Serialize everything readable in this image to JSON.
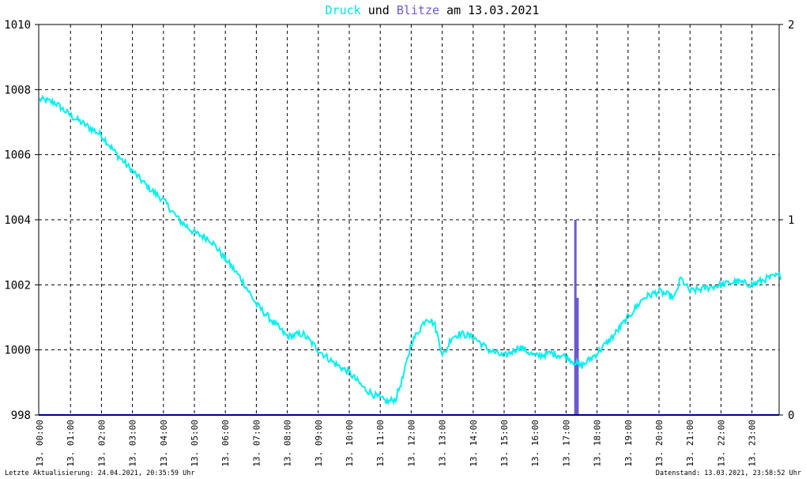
{
  "title": {
    "parts": [
      {
        "text": "Druck",
        "color": "#00e5e5"
      },
      {
        "text": " und ",
        "color": "#000000"
      },
      {
        "text": "Blitze",
        "color": "#6a5acd"
      },
      {
        "text": " am 13.03.2021",
        "color": "#000000"
      }
    ]
  },
  "footer": {
    "left": "Letzte Aktualisierung: 24.04.2021, 20:35:59 Uhr",
    "right": "Datenstand: 13.03.2021, 23:58:52 Uhr"
  },
  "colors": {
    "pressure": "#00f0f0",
    "lightning": "#6a5acd",
    "grid": "#000000",
    "axis": "#000080"
  },
  "chart_data": {
    "type": "line",
    "x_ticks": [
      "13. 00:00",
      "13. 01:00",
      "13. 02:00",
      "13. 03:00",
      "13. 04:00",
      "13. 05:00",
      "13. 06:00",
      "13. 07:00",
      "13. 08:00",
      "13. 09:00",
      "13. 10:00",
      "13. 11:00",
      "13. 12:00",
      "13. 13:00",
      "13. 14:00",
      "13. 15:00",
      "13. 16:00",
      "13. 17:00",
      "13. 18:00",
      "13. 19:00",
      "13. 20:00",
      "13. 21:00",
      "13. 22:00",
      "13. 23:00"
    ],
    "y_left": {
      "min": 998,
      "max": 1010,
      "ticks": [
        "998",
        "1000",
        "1002",
        "1004",
        "1006",
        "1008",
        "1010"
      ]
    },
    "y_right": {
      "min": 0,
      "max": 2,
      "ticks": [
        "0",
        "1",
        "2"
      ]
    },
    "grid": true,
    "series": [
      {
        "name": "Druck",
        "axis": "left",
        "x_hours": [
          0,
          0.5,
          1,
          1.5,
          2,
          2.5,
          3,
          3.5,
          4,
          4.5,
          5,
          5.5,
          6,
          6.5,
          7,
          7.5,
          8,
          8.5,
          9,
          9.5,
          10,
          10.5,
          11,
          11.25,
          11.5,
          11.75,
          12,
          12.5,
          12.75,
          13,
          13.1,
          13.3,
          13.6,
          14,
          14.5,
          15,
          15.5,
          16,
          16.5,
          17,
          17.3,
          17.5,
          18,
          18.5,
          19,
          19.5,
          20,
          20.5,
          20.7,
          21,
          21.5,
          22,
          22.5,
          23,
          23.5,
          23.95
        ],
        "values": [
          1007.7,
          1007.6,
          1007.2,
          1006.9,
          1006.6,
          1006.0,
          1005.5,
          1005.0,
          1004.6,
          1004.0,
          1003.6,
          1003.4,
          1002.8,
          1002.2,
          1001.4,
          1000.9,
          1000.4,
          1000.5,
          1000.0,
          999.6,
          999.3,
          998.8,
          998.5,
          998.4,
          998.5,
          999.2,
          1000.2,
          1001.0,
          1000.8,
          999.9,
          999.9,
          1000.4,
          1000.5,
          1000.4,
          1000.0,
          999.8,
          1000.1,
          999.8,
          999.9,
          999.8,
          999.6,
          999.5,
          999.9,
          1000.4,
          1001.0,
          1001.6,
          1001.8,
          1001.6,
          1002.2,
          1001.8,
          1001.9,
          1002.0,
          1002.1,
          1002.0,
          1002.2,
          1002.3
        ]
      },
      {
        "name": "Blitze",
        "axis": "right",
        "bars": [
          {
            "x_hours": 17.3,
            "value": 1
          },
          {
            "x_hours": 17.37,
            "value": 0.6
          }
        ]
      }
    ]
  }
}
